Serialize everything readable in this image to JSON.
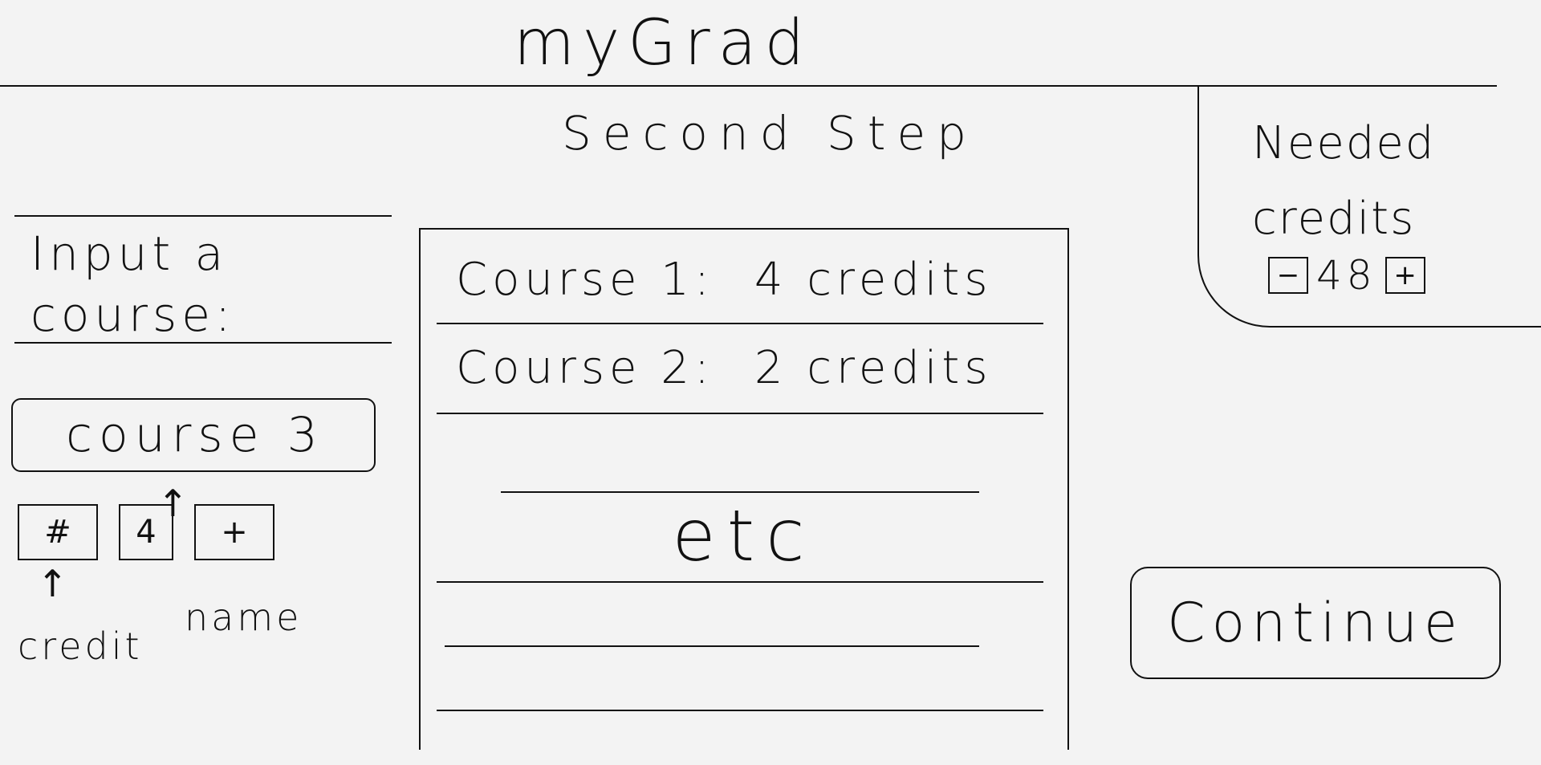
{
  "app": {
    "title": "myGrad"
  },
  "step": {
    "title": "Second Step"
  },
  "credits": {
    "label": "Needed credits",
    "value": "48",
    "decrement_label": "−",
    "increment_label": "+"
  },
  "input": {
    "heading": "Input a course:",
    "course_name": "course 3",
    "credit_button_label": "#",
    "credit_value": "4",
    "add_label": "+",
    "credit_annotation": "credit",
    "name_annotation": "name"
  },
  "courses": {
    "items": [
      {
        "name": "Course 1:",
        "credits": "4 credits"
      },
      {
        "name": "Course 2:",
        "credits": "2 credits"
      }
    ],
    "more_label": "etc"
  },
  "actions": {
    "continue_label": "Continue"
  }
}
